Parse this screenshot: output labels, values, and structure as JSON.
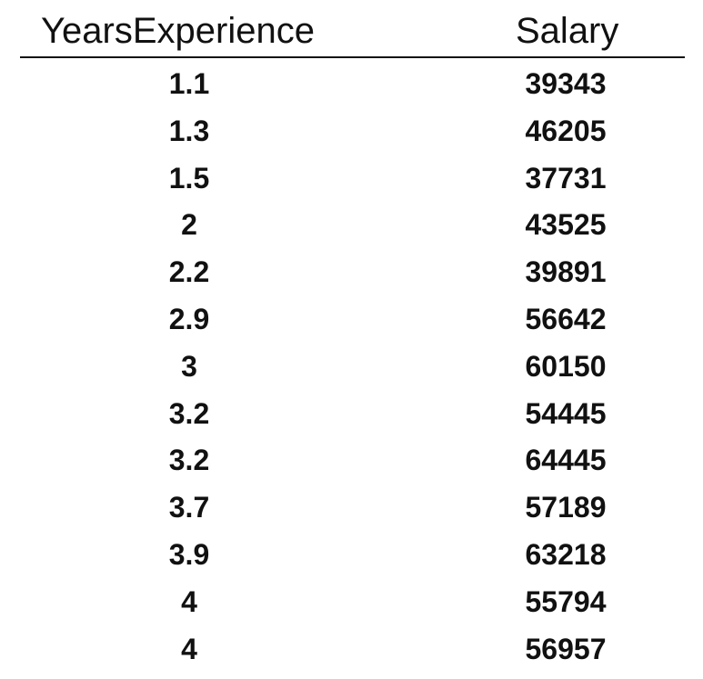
{
  "chart_data": {
    "type": "table",
    "columns": [
      "YearsExperience",
      "Salary"
    ],
    "rows": [
      [
        "1.1",
        "39343"
      ],
      [
        "1.3",
        "46205"
      ],
      [
        "1.5",
        "37731"
      ],
      [
        "2",
        "43525"
      ],
      [
        "2.2",
        "39891"
      ],
      [
        "2.9",
        "56642"
      ],
      [
        "3",
        "60150"
      ],
      [
        "3.2",
        "54445"
      ],
      [
        "3.2",
        "64445"
      ],
      [
        "3.7",
        "57189"
      ],
      [
        "3.9",
        "63218"
      ],
      [
        "4",
        "55794"
      ],
      [
        "4",
        "56957"
      ]
    ]
  }
}
